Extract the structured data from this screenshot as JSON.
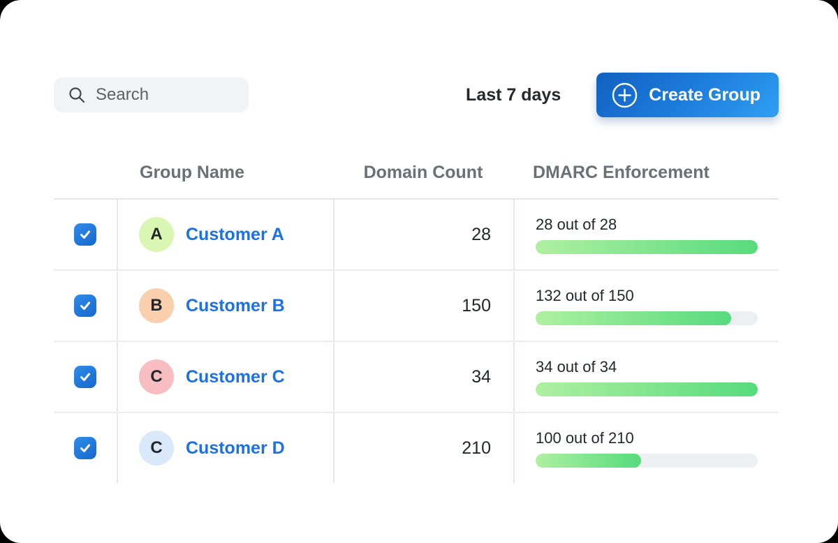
{
  "toolbar": {
    "search_placeholder": "Search",
    "date_range_label": "Last 7 days",
    "create_group_label": "Create Group"
  },
  "table": {
    "columns": [
      "Group Name",
      "Domain Count",
      "DMARC Enforcement"
    ],
    "rows": [
      {
        "selected": true,
        "avatar_letter": "A",
        "avatar_color": "#d9f6b2",
        "name": "Customer A",
        "domain_count": "28",
        "dmarc_label": "28 out of 28",
        "dmarc_value": 28,
        "dmarc_total": 28
      },
      {
        "selected": true,
        "avatar_letter": "B",
        "avatar_color": "#f9cfae",
        "name": "Customer B",
        "domain_count": "150",
        "dmarc_label": "132 out of 150",
        "dmarc_value": 132,
        "dmarc_total": 150
      },
      {
        "selected": true,
        "avatar_letter": "C",
        "avatar_color": "#f8bdc1",
        "name": "Customer C",
        "domain_count": "34",
        "dmarc_label": "34 out of 34",
        "dmarc_value": 34,
        "dmarc_total": 34
      },
      {
        "selected": true,
        "avatar_letter": "C",
        "avatar_color": "#d9e9fa",
        "name": "Customer D",
        "domain_count": "210",
        "dmarc_label": "100 out of 210",
        "dmarc_value": 100,
        "dmarc_total": 210
      }
    ]
  },
  "colors": {
    "accent_blue": "#1b72e8",
    "button_gradient_start": "#1261c0",
    "button_gradient_end": "#2f9ef2",
    "checkbox_blue": "#1668cd",
    "progress_start": "#aef0a0",
    "progress_end": "#57db7d",
    "progress_track": "#edf0f2",
    "header_text": "#697076",
    "body_text": "#23272b"
  }
}
